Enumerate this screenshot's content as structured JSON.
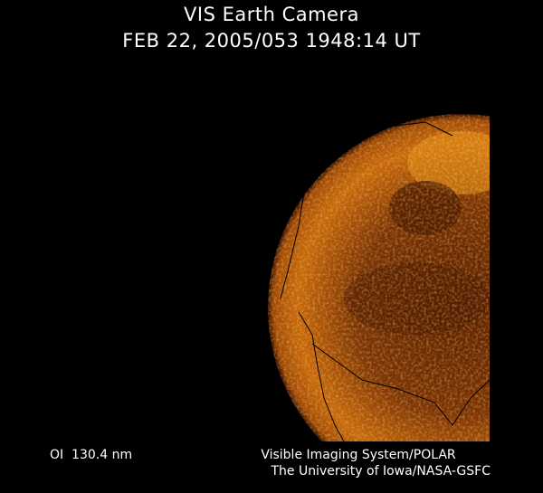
{
  "header": {
    "title": "VIS Earth Camera",
    "timestamp": "FEB 22, 2005/053 1948:14 UT"
  },
  "footer": {
    "wavelength": "OI  130.4 nm",
    "credit_line1": "Visible Imaging System/POLAR",
    "credit_line2": "The University of Iowa/NASA-GSFC"
  },
  "colors": {
    "background": "#000000",
    "glow_bright": "#f0a020",
    "glow_mid": "#b85a08",
    "glow_dark": "#4a1800"
  }
}
